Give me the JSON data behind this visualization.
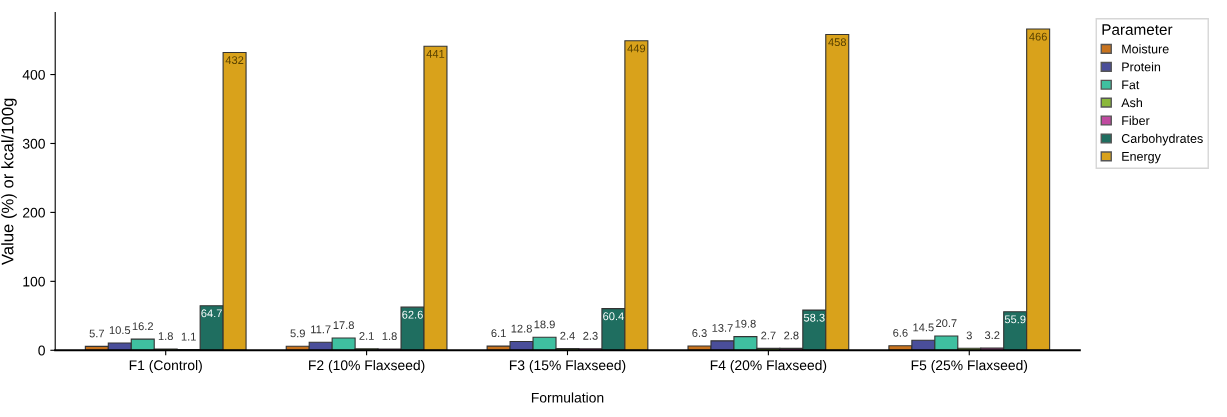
{
  "chart_data": {
    "type": "bar",
    "xlabel": "Formulation",
    "ylabel": "Value (%) or kcal/100g",
    "legend_title": "Parameter",
    "categories": [
      "F1 (Control)",
      "F2 (10% Flaxseed)",
      "F3 (15% Flaxseed)",
      "F4 (20% Flaxseed)",
      "F5 (25% Flaxseed)"
    ],
    "series": [
      {
        "name": "Moisture",
        "color": "#c8731e",
        "values": [
          5.7,
          5.9,
          6.1,
          6.3,
          6.6
        ]
      },
      {
        "name": "Protein",
        "color": "#4a4e9a",
        "values": [
          10.5,
          11.7,
          12.8,
          13.7,
          14.5
        ]
      },
      {
        "name": "Fat",
        "color": "#3fc0a0",
        "values": [
          16.2,
          17.8,
          18.9,
          19.8,
          20.7
        ]
      },
      {
        "name": "Ash",
        "color": "#8ab83a",
        "values": [
          1.8,
          2.1,
          2.4,
          2.7,
          3
        ]
      },
      {
        "name": "Fiber",
        "color": "#c04aa0",
        "values": [
          1.1,
          1.8,
          2.3,
          2.8,
          3.2
        ]
      },
      {
        "name": "Carbohydrates",
        "color": "#1f6e60",
        "values": [
          64.7,
          62.6,
          60.4,
          58.3,
          55.9
        ]
      },
      {
        "name": "Energy",
        "color": "#d9a21b",
        "values": [
          432,
          441,
          449,
          458,
          466
        ]
      }
    ],
    "ylim": [
      0,
      490
    ],
    "yticks": [
      0,
      100,
      200,
      300,
      400
    ],
    "data_labels": true,
    "grid": false,
    "legend": "right"
  }
}
